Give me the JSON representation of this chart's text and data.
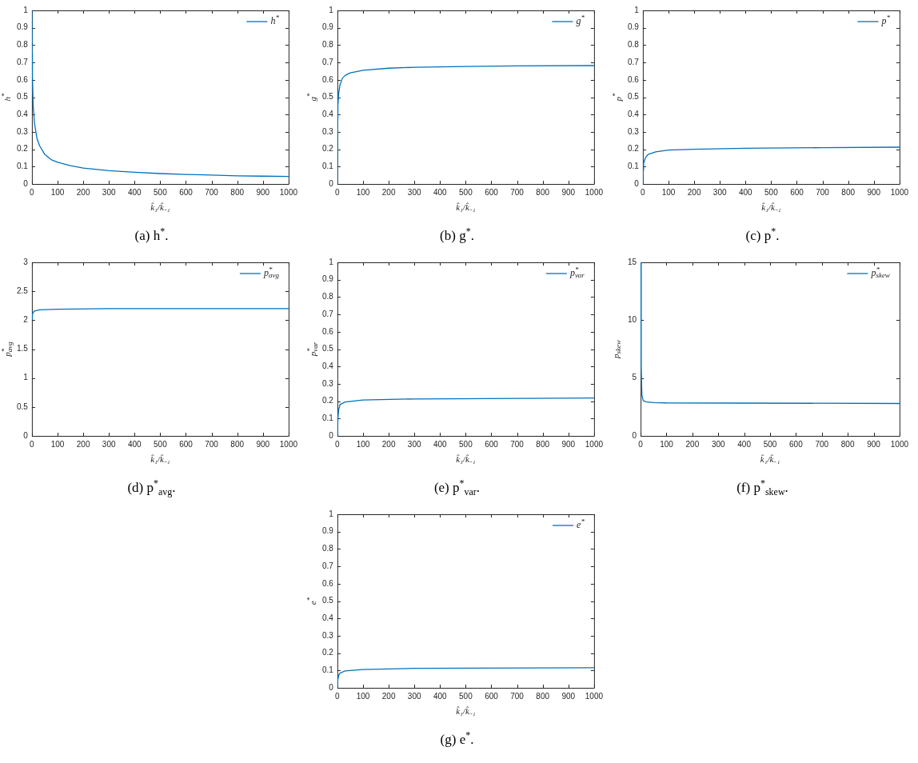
{
  "chart_data": [
    {
      "type": "line",
      "title": "(a) h$^{*}$.",
      "xlabel": "k̂₁/k̂₋₁",
      "ylabel": "h$^{*}$",
      "legend": "top right",
      "xlim": [
        0,
        1000
      ],
      "xticks": [
        0,
        100,
        200,
        300,
        400,
        500,
        600,
        700,
        800,
        900,
        1000
      ],
      "ylim": [
        0,
        1
      ],
      "yticks": [
        0,
        0.1,
        0.2,
        0.3,
        0.4,
        0.5,
        0.6,
        0.7,
        0.8,
        0.9,
        1
      ],
      "series": [
        {
          "name": "h$^{*}$",
          "color": "#0072bd",
          "x": [
            0,
            1,
            2,
            5,
            10,
            20,
            30,
            50,
            75,
            100,
            150,
            200,
            300,
            400,
            500,
            600,
            700,
            800,
            900,
            1000
          ],
          "values": [
            1,
            0.75,
            0.62,
            0.45,
            0.35,
            0.26,
            0.22,
            0.17,
            0.14,
            0.125,
            0.105,
            0.092,
            0.077,
            0.067,
            0.06,
            0.055,
            0.051,
            0.047,
            0.045,
            0.043
          ]
        }
      ]
    },
    {
      "type": "line",
      "title": "(b) g$^{*}$.",
      "xlabel": "k̂₁/k̂₋₁",
      "ylabel": "g$^{*}$",
      "legend": "top right",
      "xlim": [
        0,
        1000
      ],
      "xticks": [
        0,
        100,
        200,
        300,
        400,
        500,
        600,
        700,
        800,
        900,
        1000
      ],
      "ylim": [
        0,
        1
      ],
      "yticks": [
        0,
        0.1,
        0.2,
        0.3,
        0.4,
        0.5,
        0.6,
        0.7,
        0.8,
        0.9,
        1
      ],
      "series": [
        {
          "name": "g$^{*}$",
          "color": "#0072bd",
          "x": [
            0,
            1,
            2,
            5,
            10,
            20,
            30,
            50,
            100,
            200,
            300,
            500,
            700,
            1000
          ],
          "values": [
            0,
            0.38,
            0.45,
            0.52,
            0.57,
            0.61,
            0.625,
            0.64,
            0.655,
            0.667,
            0.672,
            0.677,
            0.68,
            0.682
          ]
        }
      ]
    },
    {
      "type": "line",
      "title": "(c) p$^{*}$.",
      "xlabel": "k̂₁/k̂₋₁",
      "ylabel": "p$^{*}$",
      "legend": "top right",
      "xlim": [
        0,
        1000
      ],
      "xticks": [
        0,
        100,
        200,
        300,
        400,
        500,
        600,
        700,
        800,
        900,
        1000
      ],
      "ylim": [
        0,
        1
      ],
      "yticks": [
        0,
        0.1,
        0.2,
        0.3,
        0.4,
        0.5,
        0.6,
        0.7,
        0.8,
        0.9,
        1
      ],
      "series": [
        {
          "name": "p$^{*}$",
          "color": "#0072bd",
          "x": [
            0,
            1,
            3,
            10,
            20,
            50,
            100,
            200,
            400,
            700,
            1000
          ],
          "values": [
            0,
            0.08,
            0.12,
            0.15,
            0.17,
            0.185,
            0.195,
            0.2,
            0.206,
            0.209,
            0.212
          ]
        }
      ]
    },
    {
      "type": "line",
      "title": "(d) p$^{*}$$_{avg}$.",
      "xlabel": "k̂₁/k̂₋₁",
      "ylabel": "p$^{*}$$_{avg}$",
      "legend": "top right",
      "xlim": [
        0,
        1000
      ],
      "xticks": [
        0,
        100,
        200,
        300,
        400,
        500,
        600,
        700,
        800,
        900,
        1000
      ],
      "ylim": [
        0,
        3
      ],
      "yticks": [
        0,
        0.5,
        1,
        1.5,
        2,
        2.5,
        3
      ],
      "series": [
        {
          "name": "p$^{*}$$_{avg}$",
          "color": "#0072bd",
          "x": [
            0,
            3,
            10,
            30,
            100,
            300,
            1000
          ],
          "values": [
            2,
            2.12,
            2.16,
            2.18,
            2.19,
            2.2,
            2.2
          ]
        }
      ]
    },
    {
      "type": "line",
      "title": "(e) p$^{*}$$_{var}$.",
      "xlabel": "k̂₁/k̂₋₁",
      "ylabel": "p$^{*}$$_{var}$",
      "legend": "top right",
      "xlim": [
        0,
        1000
      ],
      "xticks": [
        0,
        100,
        200,
        300,
        400,
        500,
        600,
        700,
        800,
        900,
        1000
      ],
      "ylim": [
        0,
        1
      ],
      "yticks": [
        0,
        0.1,
        0.2,
        0.3,
        0.4,
        0.5,
        0.6,
        0.7,
        0.8,
        0.9,
        1
      ],
      "series": [
        {
          "name": "p$^{*}$$_{var}$",
          "color": "#0072bd",
          "x": [
            0,
            2,
            5,
            10,
            30,
            100,
            300,
            1000
          ],
          "values": [
            0,
            0.1,
            0.15,
            0.18,
            0.195,
            0.207,
            0.213,
            0.218
          ]
        }
      ]
    },
    {
      "type": "line",
      "title": "(f) p$^{*}$$_{skew}$.",
      "xlabel": "k̂₁/k̂₋₁",
      "ylabel": "p$^{*}$$_{skew}$",
      "legend": "top right",
      "xlim": [
        0,
        1000
      ],
      "xticks": [
        0,
        100,
        200,
        300,
        400,
        500,
        600,
        700,
        800,
        900,
        1000
      ],
      "ylim": [
        0,
        15
      ],
      "yticks": [
        0,
        5,
        10,
        15
      ],
      "series": [
        {
          "name": "p$^{*}$$_{skew}$",
          "color": "#0072bd",
          "x": [
            0,
            2,
            5,
            10,
            20,
            50,
            100,
            1000
          ],
          "values": [
            15,
            6,
            3.5,
            3.05,
            2.95,
            2.88,
            2.85,
            2.8
          ]
        }
      ]
    },
    {
      "type": "line",
      "title": "(g) e$^{*}$.",
      "xlabel": "k̂₁/k̂₋₁",
      "ylabel": "e$^{*}$",
      "legend": "top right",
      "xlim": [
        0,
        1000
      ],
      "xticks": [
        0,
        100,
        200,
        300,
        400,
        500,
        600,
        700,
        800,
        900,
        1000
      ],
      "ylim": [
        0,
        1
      ],
      "yticks": [
        0,
        0.1,
        0.2,
        0.3,
        0.4,
        0.5,
        0.6,
        0.7,
        0.8,
        0.9,
        1
      ],
      "series": [
        {
          "name": "e$^{*}$",
          "color": "#0072bd",
          "x": [
            0,
            2,
            5,
            10,
            30,
            100,
            300,
            1000
          ],
          "values": [
            0,
            0.05,
            0.07,
            0.085,
            0.097,
            0.105,
            0.112,
            0.116
          ]
        }
      ]
    }
  ]
}
